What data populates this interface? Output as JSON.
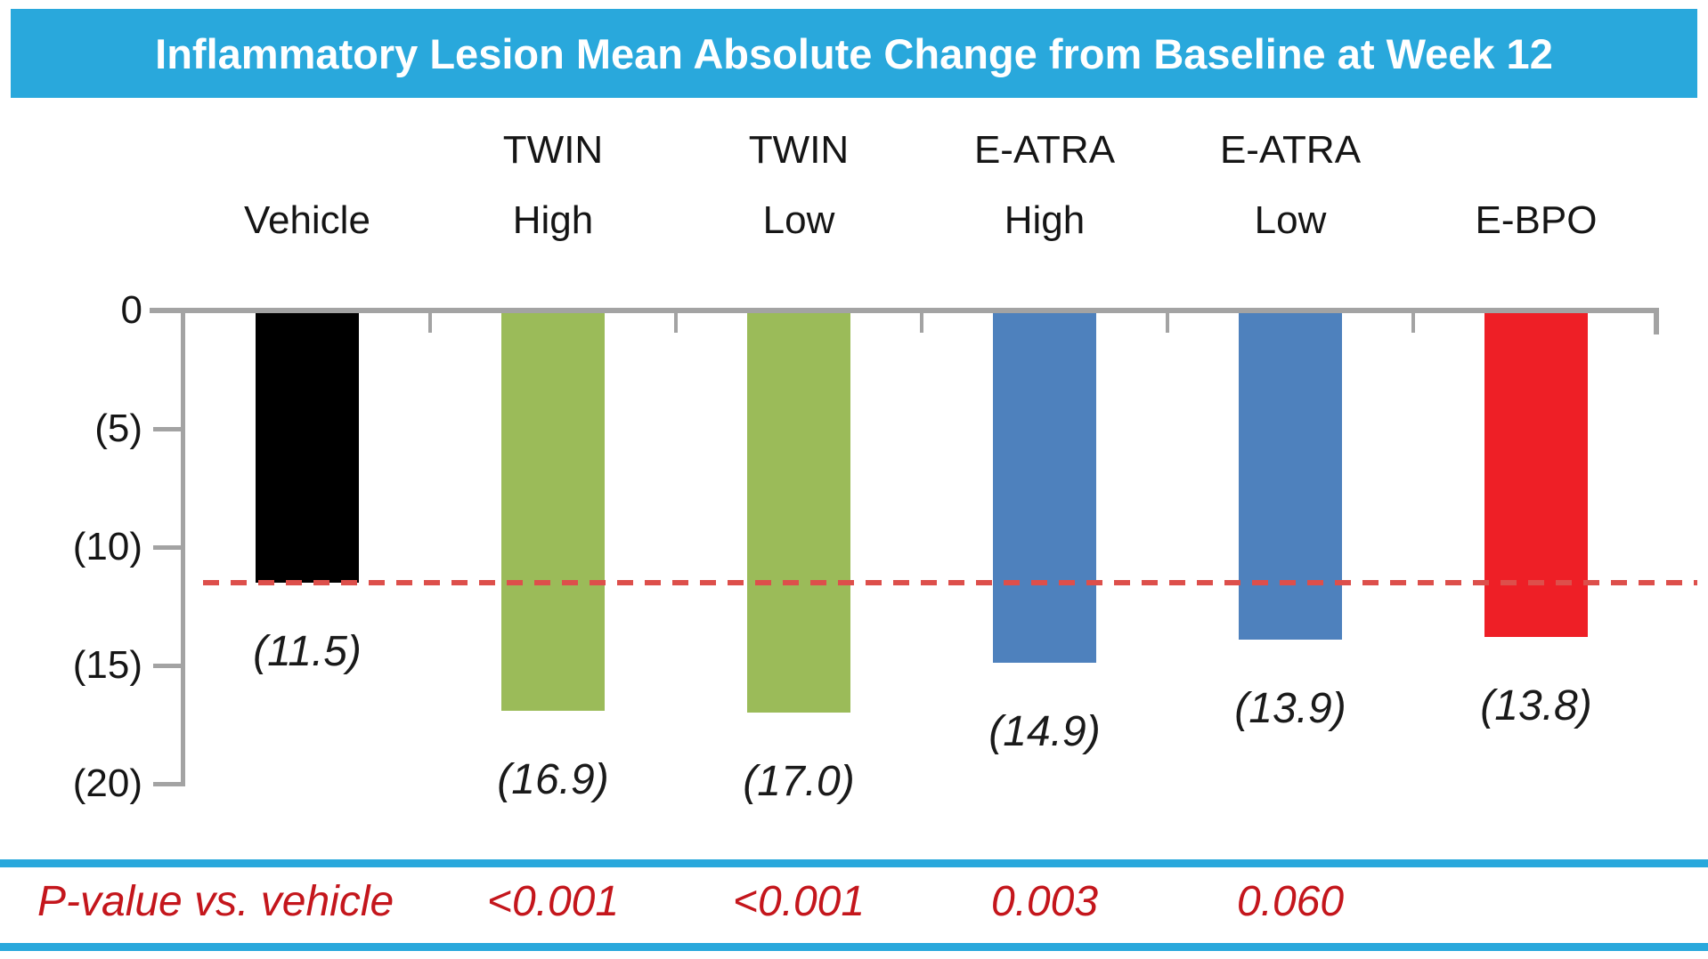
{
  "title": "Inflammatory Lesion Mean Absolute Change from Baseline at Week 12",
  "chart_data": {
    "type": "bar",
    "categories": [
      "Vehicle",
      "TWIN High",
      "TWIN Low",
      "E-ATRA High",
      "E-ATRA Low",
      "E-BPO"
    ],
    "category_lines": [
      [
        "Vehicle"
      ],
      [
        "TWIN",
        "High"
      ],
      [
        "TWIN",
        "Low"
      ],
      [
        "E-ATRA",
        "High"
      ],
      [
        "E-ATRA",
        "Low"
      ],
      [
        "E-BPO"
      ]
    ],
    "values": [
      -11.5,
      -16.9,
      -17.0,
      -14.9,
      -13.9,
      -13.8
    ],
    "value_labels": [
      "(11.5)",
      "(16.9)",
      "(17.0)",
      "(14.9)",
      "(13.9)",
      "(13.8)"
    ],
    "bar_colors": [
      "#000000",
      "#9BBB59",
      "#9BBB59",
      "#4E81BD",
      "#4E81BD",
      "#EE1F26"
    ],
    "ylim": [
      -20,
      0
    ],
    "ytick_values": [
      0,
      5,
      10,
      15,
      20
    ],
    "ytick_labels": [
      "0",
      "(5)",
      "(10)",
      "(15)",
      "(20)"
    ],
    "grid": false,
    "legend": null,
    "reference_line": {
      "value": -11.5,
      "style": "dashed",
      "color": "#DD4F4B",
      "meaning": "vehicle response level"
    }
  },
  "pvalue_row": {
    "label": "P-value vs. vehicle",
    "values": [
      "",
      "<0.001",
      "<0.001",
      "0.003",
      "0.060",
      ""
    ]
  },
  "colors": {
    "title_bg": "#29A8DC",
    "title_text": "#FFFFFF",
    "axis": "#A3A3A3",
    "text": "#151515",
    "pvalue_text": "#C4161C",
    "band_rule": "#29A8DC"
  }
}
